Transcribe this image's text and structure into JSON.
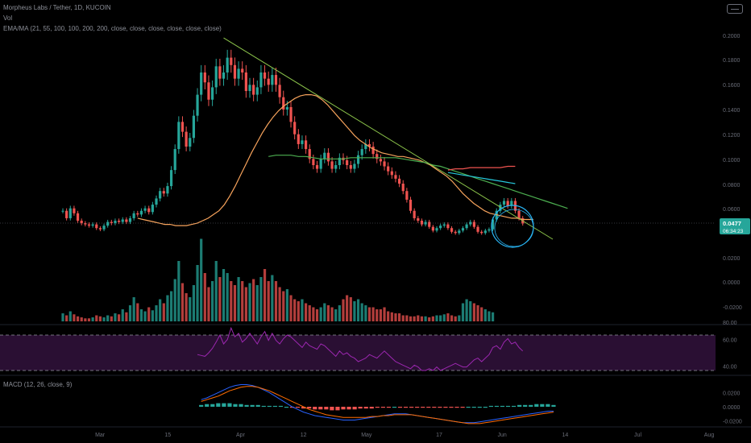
{
  "header": {
    "title": "Morpheus Labs / Tether, 1D, KUCOIN",
    "vol_label": "Vol",
    "ema_label": "EMA/MA (21, 55, 100, 100, 200, 200, close, close, close, close, close, close)",
    "macd_label": "MACD (12, 26, close, 9)"
  },
  "colors": {
    "background": "#000000",
    "up": "#26a69a",
    "down": "#ef5350",
    "ema_orange": "#f7a35c",
    "ema_green": "#4caf50",
    "ema_teal": "#26c6da",
    "ema_red": "#ef5350",
    "trendline": "#8bc34a",
    "rsi_line": "#9c27b0",
    "rsi_band": "#2a0f33",
    "macd_line": "#2962ff",
    "signal_line": "#ff6d00",
    "price_tag": "#26a69a",
    "circle": "#29b6f6"
  },
  "chart_data": [
    {
      "type": "candlestick",
      "title": "Morpheus Labs / Tether, 1D, KUCOIN",
      "y_axis_labels": [
        "0.2000",
        "0.1800",
        "0.1600",
        "0.1400",
        "0.1200",
        "0.1000",
        "0.0800",
        "0.0600",
        "0.0477",
        "0.0200",
        "0.0000",
        "-0.0200"
      ],
      "y_axis_values": [
        0.2,
        0.18,
        0.16,
        0.14,
        0.12,
        0.1,
        0.08,
        0.06,
        0.0477,
        0.02,
        0.0,
        -0.02
      ],
      "x_axis_labels": [
        "Mar",
        "15",
        "Apr",
        "12",
        "May",
        "17",
        "Jun",
        "14",
        "Jul",
        "Aug"
      ],
      "x_axis_positions": [
        8,
        22,
        37,
        50,
        63,
        78,
        91,
        104,
        119,
        150
      ],
      "current_price": "0.0477",
      "countdown": "06:34:23",
      "ohlc_start_price": 0.058,
      "closes": [
        0.058,
        0.052,
        0.06,
        0.056,
        0.05,
        0.048,
        0.047,
        0.046,
        0.047,
        0.044,
        0.043,
        0.046,
        0.049,
        0.048,
        0.05,
        0.049,
        0.051,
        0.049,
        0.052,
        0.056,
        0.055,
        0.058,
        0.06,
        0.057,
        0.063,
        0.068,
        0.074,
        0.072,
        0.078,
        0.091,
        0.108,
        0.13,
        0.122,
        0.11,
        0.117,
        0.135,
        0.152,
        0.17,
        0.162,
        0.148,
        0.158,
        0.175,
        0.165,
        0.17,
        0.182,
        0.176,
        0.165,
        0.173,
        0.17,
        0.155,
        0.16,
        0.152,
        0.158,
        0.17,
        0.165,
        0.16,
        0.168,
        0.16,
        0.15,
        0.14,
        0.142,
        0.13,
        0.12,
        0.112,
        0.115,
        0.108,
        0.1,
        0.095,
        0.092,
        0.1,
        0.105,
        0.098,
        0.092,
        0.095,
        0.101,
        0.099,
        0.095,
        0.092,
        0.096,
        0.103,
        0.108,
        0.112,
        0.11,
        0.104,
        0.1,
        0.098,
        0.094,
        0.09,
        0.087,
        0.084,
        0.08,
        0.074,
        0.067,
        0.058,
        0.052,
        0.05,
        0.047,
        0.049,
        0.045,
        0.042,
        0.044,
        0.046,
        0.047,
        0.044,
        0.041,
        0.04,
        0.042,
        0.044,
        0.047,
        0.049,
        0.045,
        0.041,
        0.04,
        0.042,
        0.043,
        0.051,
        0.058,
        0.063,
        0.066,
        0.062,
        0.066,
        0.058,
        0.052,
        0.0477
      ],
      "ema_21": [
        0.052,
        0.051,
        0.05,
        0.049,
        0.048,
        0.047,
        0.047,
        0.046,
        0.046,
        0.046,
        0.047,
        0.048,
        0.05,
        0.052,
        0.055,
        0.058,
        0.063,
        0.07,
        0.078,
        0.087,
        0.096,
        0.105,
        0.113,
        0.121,
        0.128,
        0.134,
        0.139,
        0.143,
        0.146,
        0.149,
        0.151,
        0.152,
        0.152,
        0.151,
        0.148,
        0.144,
        0.139,
        0.134,
        0.129,
        0.124,
        0.119,
        0.115,
        0.112,
        0.109,
        0.107,
        0.105,
        0.104,
        0.103,
        0.102,
        0.102,
        0.101,
        0.1,
        0.099,
        0.097,
        0.095,
        0.092,
        0.089,
        0.086,
        0.082,
        0.077,
        0.072,
        0.068,
        0.064,
        0.061,
        0.058,
        0.056,
        0.055,
        0.054,
        0.053,
        0.052,
        0.052,
        0.051,
        0.051,
        0.051
      ],
      "ema_55": [
        0.102,
        0.103,
        0.103,
        0.103,
        0.102,
        0.102,
        0.101,
        0.1,
        0.1,
        0.1,
        0.1,
        0.101,
        0.101,
        0.101,
        0.101,
        0.101,
        0.101,
        0.101,
        0.1,
        0.099,
        0.098,
        0.097,
        0.095,
        0.094,
        0.092,
        0.09,
        0.088,
        0.086,
        0.084,
        0.082,
        0.08,
        0.078,
        0.076,
        0.074,
        0.072,
        0.07,
        0.068,
        0.066,
        0.064,
        0.062,
        0.06
      ],
      "ema_100": [
        0.089,
        0.088,
        0.087,
        0.086,
        0.085,
        0.084,
        0.083,
        0.082,
        0.081,
        0.08
      ],
      "ema_200": [
        0.091,
        0.092,
        0.092,
        0.093,
        0.093,
        0.093,
        0.093,
        0.093,
        0.094,
        0.094
      ],
      "trendline": {
        "from": 0.198,
        "to": 0.035
      }
    },
    {
      "type": "bar",
      "title": "Vol",
      "values": [
        8,
        6,
        10,
        7,
        5,
        4,
        3,
        3,
        4,
        6,
        5,
        4,
        6,
        5,
        8,
        7,
        12,
        9,
        16,
        24,
        18,
        12,
        10,
        14,
        11,
        16,
        22,
        18,
        26,
        30,
        42,
        60,
        38,
        28,
        24,
        36,
        56,
        82,
        48,
        34,
        40,
        60,
        44,
        52,
        48,
        40,
        36,
        44,
        40,
        34,
        38,
        42,
        36,
        44,
        52,
        40,
        46,
        40,
        34,
        30,
        32,
        26,
        22,
        20,
        22,
        18,
        16,
        14,
        12,
        14,
        18,
        16,
        14,
        12,
        16,
        22,
        26,
        24,
        20,
        22,
        18,
        16,
        14,
        14,
        12,
        12,
        14,
        10,
        9,
        8,
        8,
        6,
        6,
        5,
        5,
        6,
        5,
        5,
        4,
        5,
        6,
        6,
        7,
        8,
        6,
        5,
        6,
        18,
        22,
        20,
        18,
        16,
        14,
        12,
        10,
        9
      ]
    },
    {
      "type": "line",
      "title": "RSI",
      "y_axis_labels": [
        "80.00",
        "60.00",
        "40.00"
      ],
      "y_axis_values": [
        80,
        60,
        40
      ],
      "upper_band": 70,
      "lower_band": 30,
      "values": [
        null,
        null,
        null,
        null,
        null,
        null,
        null,
        null,
        null,
        null,
        null,
        null,
        null,
        null,
        null,
        null,
        null,
        null,
        null,
        null,
        null,
        null,
        null,
        null,
        null,
        null,
        null,
        null,
        null,
        null,
        null,
        null,
        null,
        null,
        null,
        null,
        48,
        47,
        46,
        50,
        55,
        62,
        70,
        60,
        65,
        78,
        68,
        72,
        62,
        66,
        72,
        66,
        60,
        68,
        74,
        64,
        72,
        64,
        60,
        66,
        70,
        68,
        64,
        60,
        56,
        62,
        58,
        56,
        54,
        60,
        58,
        54,
        50,
        46,
        52,
        48,
        50,
        46,
        44,
        40,
        42,
        44,
        48,
        46,
        44,
        48,
        52,
        48,
        44,
        40,
        38,
        36,
        34,
        32,
        36,
        34,
        30,
        30,
        32,
        30,
        34,
        30,
        32,
        34,
        36,
        38,
        36,
        34,
        34,
        38,
        42,
        44,
        40,
        44,
        48,
        56,
        58,
        54,
        62,
        66,
        60,
        62,
        56,
        52
      ]
    },
    {
      "type": "bar",
      "title": "MACD (12, 26, close, 9)",
      "y_axis_labels": [
        "0.0200",
        "0.0000",
        "-0.0200"
      ],
      "y_axis_values": [
        0.02,
        0.0,
        -0.02
      ],
      "histogram": [
        0.002,
        0.003,
        0.003,
        0.004,
        0.004,
        0.004,
        0.003,
        0.003,
        0.002,
        0.002,
        0.002,
        0.001,
        0.001,
        0.001,
        0.001,
        0.0,
        -0.001,
        -0.001,
        -0.002,
        -0.002,
        -0.003,
        -0.003,
        -0.003,
        -0.004,
        -0.004,
        -0.003,
        -0.003,
        -0.003,
        -0.002,
        -0.002,
        -0.002,
        -0.001,
        -0.001,
        -0.001,
        0.0,
        -0.001,
        -0.001,
        -0.001,
        -0.001,
        -0.001,
        -0.001,
        -0.001,
        -0.001,
        -0.001,
        -0.001,
        -0.001,
        -0.001,
        0.0,
        0.0,
        0.0,
        0.0,
        0.001,
        0.001,
        0.001,
        0.001,
        0.001,
        0.002,
        0.002,
        0.002,
        0.003,
        0.003,
        0.003,
        0.002
      ],
      "macd": [
        0.008,
        0.01,
        0.013,
        0.016,
        0.019,
        0.022,
        0.024,
        0.025,
        0.025,
        0.024,
        0.022,
        0.019,
        0.016,
        0.012,
        0.008,
        0.004,
        0.0,
        -0.003,
        -0.006,
        -0.008,
        -0.01,
        -0.011,
        -0.012,
        -0.013,
        -0.014,
        -0.015,
        -0.015,
        -0.015,
        -0.014,
        -0.013,
        -0.012,
        -0.011,
        -0.01,
        -0.009,
        -0.008,
        -0.008,
        -0.008,
        -0.009,
        -0.01,
        -0.011,
        -0.012,
        -0.013,
        -0.014,
        -0.015,
        -0.016,
        -0.017,
        -0.018,
        -0.018,
        -0.018,
        -0.017,
        -0.016,
        -0.015,
        -0.014,
        -0.013,
        -0.012,
        -0.011,
        -0.01,
        -0.009,
        -0.008,
        -0.007,
        -0.006,
        -0.005,
        -0.005
      ],
      "signal": [
        0.006,
        0.008,
        0.01,
        0.012,
        0.015,
        0.018,
        0.02,
        0.022,
        0.023,
        0.023,
        0.022,
        0.02,
        0.018,
        0.015,
        0.012,
        0.009,
        0.006,
        0.003,
        0.0,
        -0.003,
        -0.005,
        -0.007,
        -0.009,
        -0.01,
        -0.011,
        -0.012,
        -0.012,
        -0.012,
        -0.012,
        -0.012,
        -0.011,
        -0.011,
        -0.01,
        -0.01,
        -0.009,
        -0.009,
        -0.009,
        -0.009,
        -0.01,
        -0.011,
        -0.012,
        -0.013,
        -0.014,
        -0.015,
        -0.016,
        -0.017,
        -0.018,
        -0.019,
        -0.019,
        -0.019,
        -0.018,
        -0.017,
        -0.016,
        -0.015,
        -0.014,
        -0.013,
        -0.012,
        -0.011,
        -0.01,
        -0.009,
        -0.008,
        -0.007,
        -0.006
      ]
    }
  ]
}
